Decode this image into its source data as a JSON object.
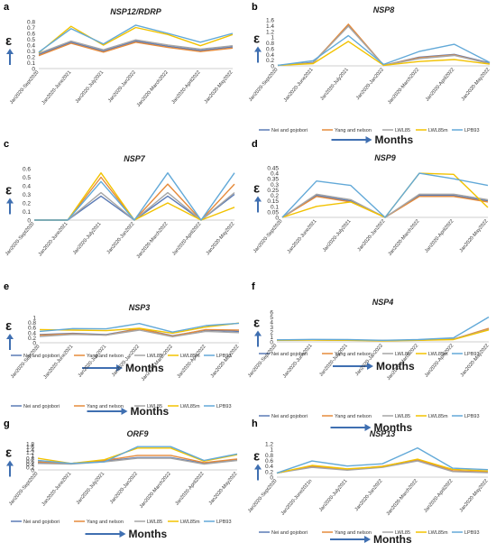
{
  "figure": {
    "months_label": "Months",
    "y_symbol": "ε",
    "series_colors": {
      "Nei and gojobori": "#5b7bb5",
      "Yang and nelson": "#e58a3a",
      "LWL85": "#a6a6a6",
      "LWL85m": "#f2c200",
      "LPB93": "#62a9d8"
    },
    "arrow_color": "#3f6fb1"
  },
  "chart_data": [
    {
      "panel": "a",
      "type": "line",
      "title": "NSP12/RDRP",
      "categories": [
        "Jan2020-Sept2020",
        "Jan2020-June2021",
        "Jan2020-July2021",
        "Jan2020-Jan2022",
        "Jan2020-March2022",
        "Jan2020-April2022",
        "Jan2020-May2022"
      ],
      "yticks": [
        "0",
        "0.1",
        "0.2",
        "0.3",
        "0.4",
        "0.5",
        "0.6",
        "0.7",
        "0.8"
      ],
      "ylim": [
        0,
        0.8
      ],
      "series": [
        {
          "name": "Nei and gojobori",
          "values": [
            0.24,
            0.45,
            0.3,
            0.47,
            0.38,
            0.31,
            0.37
          ]
        },
        {
          "name": "Yang and nelson",
          "values": [
            0.22,
            0.43,
            0.28,
            0.45,
            0.36,
            0.29,
            0.35
          ]
        },
        {
          "name": "LWL85",
          "values": [
            0.26,
            0.47,
            0.32,
            0.49,
            0.4,
            0.33,
            0.39
          ]
        },
        {
          "name": "LWL85m",
          "values": [
            0.27,
            0.72,
            0.4,
            0.7,
            0.58,
            0.39,
            0.58
          ]
        },
        {
          "name": "LPB93",
          "values": [
            0.28,
            0.68,
            0.42,
            0.74,
            0.6,
            0.45,
            0.6
          ]
        }
      ]
    },
    {
      "panel": "b",
      "type": "line",
      "title": "NSP8",
      "categories": [
        "Jan2020-Sept2020",
        "Jan2020-June2021",
        "Jan2020-July2021",
        "Jan2020-Jan2022",
        "Jan2020-March2022",
        "Jan2020-April2022",
        "Jan2020-May2022"
      ],
      "yticks": [
        "0",
        "0.2",
        "0.4",
        "0.6",
        "0.8",
        "1",
        "1.2",
        "1.4",
        "1.6"
      ],
      "ylim": [
        0,
        1.6
      ],
      "series": [
        {
          "name": "Nei and gojobori",
          "values": [
            0.02,
            0.12,
            1.4,
            0.02,
            0.3,
            0.4,
            0.1
          ]
        },
        {
          "name": "Yang and nelson",
          "values": [
            0.02,
            0.1,
            1.45,
            0.02,
            0.28,
            0.38,
            0.08
          ]
        },
        {
          "name": "LWL85",
          "values": [
            0.02,
            0.1,
            1.38,
            0.02,
            0.25,
            0.36,
            0.08
          ]
        },
        {
          "name": "LWL85m",
          "values": [
            0.02,
            0.08,
            0.85,
            0.02,
            0.15,
            0.22,
            0.06
          ]
        },
        {
          "name": "LPB93",
          "values": [
            0.02,
            0.18,
            1.05,
            0.05,
            0.5,
            0.75,
            0.12
          ]
        }
      ]
    },
    {
      "panel": "c",
      "type": "line",
      "title": "NSP7",
      "categories": [
        "Jan2020-Sept2020",
        "Jan2020-June2021",
        "Jan2020-July2021",
        "Jan2020-Jan2022",
        "Jan2020-March2022",
        "Jan2020-April2022",
        "Jan2020-May2022"
      ],
      "yticks": [
        "0",
        "0.1",
        "0.2",
        "0.3",
        "0.4",
        "0.5",
        "0.6"
      ],
      "ylim": [
        0,
        0.6
      ],
      "series": [
        {
          "name": "Nei and gojobori",
          "values": [
            0,
            0,
            0.28,
            0,
            0.28,
            0,
            0.3
          ]
        },
        {
          "name": "Yang and nelson",
          "values": [
            0,
            0,
            0.5,
            0,
            0.42,
            0,
            0.42
          ]
        },
        {
          "name": "LWL85",
          "values": [
            0,
            0,
            0.32,
            0,
            0.32,
            0,
            0.32
          ]
        },
        {
          "name": "LWL85m",
          "values": [
            0,
            0,
            0.55,
            0,
            0.2,
            0,
            0.15
          ]
        },
        {
          "name": "LPB93",
          "values": [
            0,
            0,
            0.45,
            0,
            0.55,
            0,
            0.55
          ]
        }
      ]
    },
    {
      "panel": "d",
      "type": "line",
      "title": "NSP9",
      "categories": [
        "Jan2020-Sept2020",
        "Jan2020-June2021",
        "Jan2020-July2021",
        "Jan2020-Jan2022",
        "Jan2020-March2022",
        "Jan2020-April2022",
        "Jan2020-May2022"
      ],
      "yticks": [
        "0",
        "0.05",
        "0.1",
        "0.15",
        "0.2",
        "0.25",
        "0.3",
        "0.35",
        "0.4",
        "0.45"
      ],
      "ylim": [
        0,
        0.45
      ],
      "series": [
        {
          "name": "Nei and gojobori",
          "values": [
            0,
            0.2,
            0.15,
            0,
            0.2,
            0.2,
            0.15
          ]
        },
        {
          "name": "Yang and nelson",
          "values": [
            0,
            0.19,
            0.14,
            0,
            0.19,
            0.19,
            0.14
          ]
        },
        {
          "name": "LWL85",
          "values": [
            0,
            0.21,
            0.16,
            0,
            0.21,
            0.21,
            0.16
          ]
        },
        {
          "name": "LWL85m",
          "values": [
            0,
            0.1,
            0.14,
            0,
            0.4,
            0.39,
            0.09
          ]
        },
        {
          "name": "LPB93",
          "values": [
            0,
            0.33,
            0.29,
            0,
            0.4,
            0.35,
            0.29
          ]
        }
      ]
    },
    {
      "panel": "e",
      "type": "line",
      "title": "NSP3",
      "categories": [
        "Jan2020-Sept2020",
        "Jan2020-June2021",
        "Jan2020-July2021",
        "Jan2020-Jan2022",
        "Jan2020-March2022",
        "Jan2020-April2022",
        "Jan2020-May2022"
      ],
      "yticks": [
        "0",
        "0.2",
        "0.4",
        "0.6",
        "0.8",
        "1"
      ],
      "ylim": [
        0,
        1
      ],
      "series": [
        {
          "name": "Nei and gojobori",
          "values": [
            0.32,
            0.37,
            0.32,
            0.56,
            0.28,
            0.5,
            0.45
          ]
        },
        {
          "name": "Yang and nelson",
          "values": [
            0.3,
            0.35,
            0.3,
            0.55,
            0.26,
            0.52,
            0.5
          ]
        },
        {
          "name": "LWL85",
          "values": [
            0.25,
            0.33,
            0.3,
            0.5,
            0.24,
            0.45,
            0.4
          ]
        },
        {
          "name": "LWL85m",
          "values": [
            0.52,
            0.5,
            0.48,
            0.57,
            0.38,
            0.62,
            0.78
          ]
        },
        {
          "name": "LPB93",
          "values": [
            0.45,
            0.56,
            0.55,
            0.76,
            0.42,
            0.68,
            0.77
          ]
        }
      ]
    },
    {
      "panel": "f",
      "type": "line",
      "title": "NSP4",
      "categories": [
        "Jan2020-Sept2020",
        "Jan2020-June2021",
        "Jan2020-July2021",
        "Jan2020-Jan2022",
        "Jan2020-March2022",
        "Jan2020-April2022",
        "Jan2020-May2022"
      ],
      "yticks": [
        "0",
        "1",
        "2",
        "3",
        "4",
        "5",
        "6"
      ],
      "ylim": [
        0,
        6
      ],
      "series": [
        {
          "name": "Nei and gojobori",
          "values": [
            0.35,
            0.4,
            0.35,
            0.25,
            0.35,
            0.55,
            2.6
          ]
        },
        {
          "name": "Yang and nelson",
          "values": [
            0.35,
            0.4,
            0.35,
            0.25,
            0.35,
            0.55,
            2.7
          ]
        },
        {
          "name": "LWL85",
          "values": [
            0.35,
            0.4,
            0.35,
            0.25,
            0.35,
            0.55,
            2.5
          ]
        },
        {
          "name": "LWL85m",
          "values": [
            0.3,
            0.35,
            0.3,
            0.2,
            0.3,
            0.45,
            2.4
          ]
        },
        {
          "name": "LPB93",
          "values": [
            0.4,
            0.5,
            0.45,
            0.3,
            0.45,
            0.8,
            5
          ]
        }
      ]
    },
    {
      "panel": "g",
      "type": "line",
      "title": "ORF9",
      "categories": [
        "Jan2020-Sept2020",
        "Jan2020-June2021",
        "Jan2020-July2021",
        "Jan2020-Jan2022",
        "Jan2020-March2022",
        "Jan2020-April2022",
        "Jan2020-May2022"
      ],
      "yticks": [
        "0",
        "0.2",
        "0.4",
        "0.6",
        "0.8",
        "1",
        "1.2",
        "1.4",
        "1.6",
        "1.8"
      ],
      "ylim": [
        0,
        1.8
      ],
      "series": [
        {
          "name": "Nei and gojobori",
          "values": [
            0.5,
            0.45,
            0.6,
            0.85,
            0.85,
            0.45,
            0.7
          ]
        },
        {
          "name": "Yang and nelson",
          "values": [
            0.55,
            0.45,
            0.65,
            1.0,
            1.0,
            0.5,
            0.75
          ]
        },
        {
          "name": "LWL85",
          "values": [
            0.45,
            0.4,
            0.55,
            0.8,
            0.8,
            0.4,
            0.65
          ]
        },
        {
          "name": "LWL85m",
          "values": [
            0.8,
            0.45,
            0.7,
            1.5,
            1.5,
            0.6,
            1.05
          ]
        },
        {
          "name": "LPB93",
          "values": [
            0.65,
            0.45,
            0.55,
            1.6,
            1.6,
            0.65,
            1.1
          ]
        }
      ]
    },
    {
      "panel": "h",
      "type": "line",
      "title": "NSP13",
      "categories": [
        "Jan2020-Sept2020",
        "Jan2020-June2021n",
        "Jan2020-July2021",
        "Jan2020-Jan2022",
        "Jan2020-March2022",
        "Jan2020-April2022",
        "Jan2020-May2022"
      ],
      "yticks": [
        "0",
        "0.2",
        "0.4",
        "0.6",
        "0.8",
        "1",
        "1.2"
      ],
      "ylim": [
        0,
        1.2
      ],
      "series": [
        {
          "name": "Nei and gojobori",
          "values": [
            0.15,
            0.38,
            0.27,
            0.38,
            0.62,
            0.22,
            0.18
          ]
        },
        {
          "name": "Yang and nelson",
          "values": [
            0.15,
            0.4,
            0.28,
            0.39,
            0.63,
            0.23,
            0.18
          ]
        },
        {
          "name": "LWL85",
          "values": [
            0.15,
            0.35,
            0.25,
            0.35,
            0.58,
            0.2,
            0.16
          ]
        },
        {
          "name": "LWL85m",
          "values": [
            0.15,
            0.42,
            0.3,
            0.38,
            0.65,
            0.28,
            0.22
          ]
        },
        {
          "name": "LPB93",
          "values": [
            0.15,
            0.58,
            0.4,
            0.48,
            1.05,
            0.32,
            0.27
          ]
        }
      ]
    }
  ]
}
